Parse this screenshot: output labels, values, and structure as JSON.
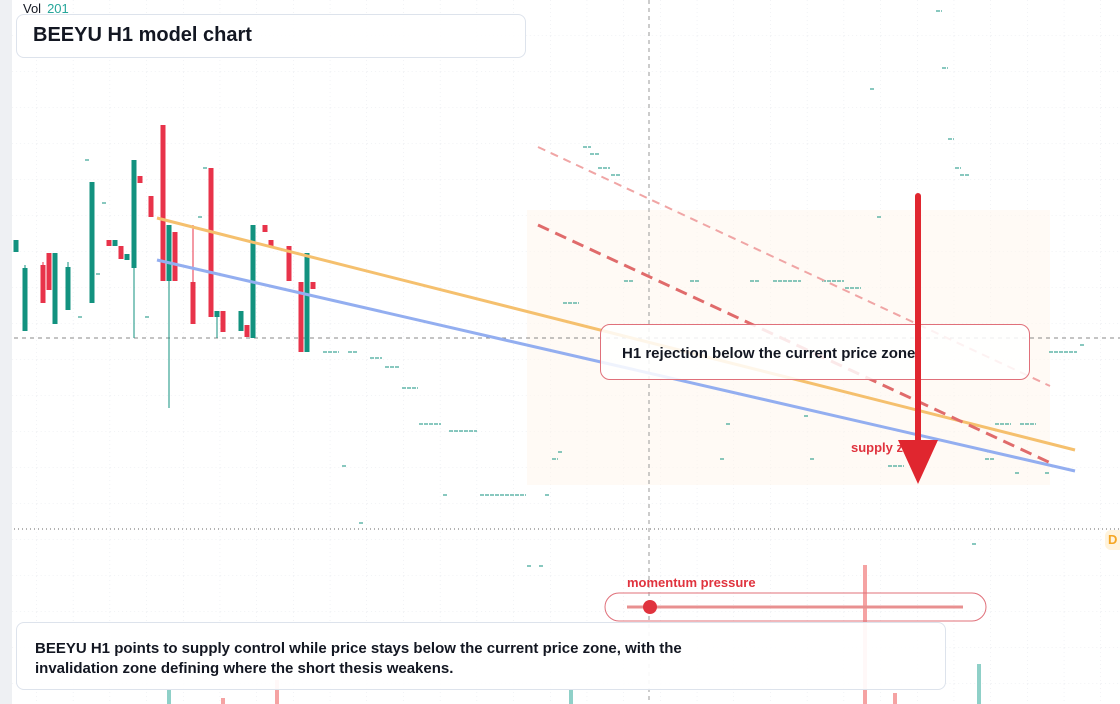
{
  "header": {
    "vol_label": "Vol",
    "vol_value": "201",
    "title": "BEEYU H1 model chart"
  },
  "annotations": {
    "callout": "H1 rejection below the current price zone",
    "supply": "supply zone",
    "momentum": "momentum pressure",
    "edge_tag": "D"
  },
  "summary": "BEEYU H1 points to supply control while price stays below the current price zone, with the invalidation zone defining where the short thesis weakens."
}
